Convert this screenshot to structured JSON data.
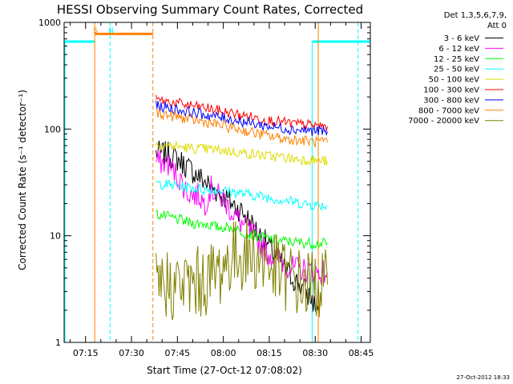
{
  "chart_data": {
    "type": "line",
    "title": "HESSI Observing Summary Count Rates, Corrected",
    "xlabel": "Start Time (27-Oct-12 07:08:02)",
    "ylabel": "Corrected Count Rate (s⁻¹ detector⁻¹)",
    "yscale": "log",
    "ylim": [
      1,
      1000
    ],
    "xlim": [
      "07:08",
      "08:48"
    ],
    "y_ticks": [
      "1",
      "10",
      "100",
      "1000"
    ],
    "x_ticks": [
      "07:15",
      "07:30",
      "07:45",
      "08:00",
      "08:15",
      "08:30",
      "08:45"
    ],
    "legend_title": [
      "Det 1,3,5,6,7,9,",
      "Att 0"
    ],
    "legend_position": "right",
    "footer": "27-Oct-2012 18:33",
    "series": [
      {
        "name": "3 - 6 keV",
        "color": "#000000",
        "x": [
          "07:38",
          "07:42",
          "07:46",
          "07:50",
          "07:54",
          "07:58",
          "08:02",
          "08:06",
          "08:10",
          "08:14",
          "08:18",
          "08:22",
          "08:26",
          "08:29",
          "08:31"
        ],
        "y": [
          60,
          58,
          50,
          40,
          32,
          26,
          21,
          17,
          12,
          8.5,
          6,
          4.2,
          3.2,
          2.5,
          2
        ]
      },
      {
        "name": "6 - 12 keV",
        "color": "#ff00ff",
        "x": [
          "07:38",
          "07:42",
          "07:46",
          "07:48",
          "07:50",
          "07:52",
          "07:54",
          "07:56",
          "07:58",
          "08:00",
          "08:02",
          "08:06",
          "08:10",
          "08:14",
          "08:18",
          "08:22",
          "08:26",
          "08:30",
          "08:34"
        ],
        "y": [
          50,
          47,
          33,
          26,
          24,
          24,
          20,
          28,
          24,
          22,
          18,
          13,
          10,
          7,
          6,
          5,
          4.8,
          4.6,
          4.5
        ]
      },
      {
        "name": "12 - 25 keV",
        "color": "#00ff00",
        "x": [
          "07:38",
          "07:42",
          "07:46",
          "07:50",
          "07:54",
          "07:58",
          "08:02",
          "08:06",
          "08:10",
          "08:14",
          "08:18",
          "08:22",
          "08:26",
          "08:30",
          "08:34"
        ],
        "y": [
          16,
          15,
          14,
          13,
          13,
          12,
          12,
          11,
          10,
          9.5,
          9,
          8.8,
          8.6,
          8.5,
          8.5
        ]
      },
      {
        "name": "25 - 50 keV",
        "color": "#00ffff",
        "x": [
          "07:38",
          "07:42",
          "07:46",
          "07:50",
          "07:54",
          "07:58",
          "08:02",
          "08:06",
          "08:10",
          "08:14",
          "08:18",
          "08:22",
          "08:26",
          "08:30",
          "08:34"
        ],
        "y": [
          31,
          30,
          29,
          28,
          27,
          27,
          26,
          25,
          24,
          23,
          22,
          21,
          20,
          19.5,
          19
        ]
      },
      {
        "name": "50 - 100 keV",
        "color": "#dddd00",
        "x": [
          "07:38",
          "07:42",
          "07:46",
          "07:50",
          "07:54",
          "07:58",
          "08:02",
          "08:06",
          "08:10",
          "08:14",
          "08:18",
          "08:22",
          "08:26",
          "08:30",
          "08:34"
        ],
        "y": [
          72,
          70,
          68,
          66,
          65,
          64,
          62,
          60,
          58,
          56,
          55,
          53,
          52,
          51,
          50
        ]
      },
      {
        "name": "100 - 300 keV",
        "color": "#ff0000",
        "x": [
          "07:38",
          "07:42",
          "07:46",
          "07:50",
          "07:54",
          "07:58",
          "08:02",
          "08:06",
          "08:10",
          "08:14",
          "08:18",
          "08:22",
          "08:26",
          "08:30",
          "08:34"
        ],
        "y": [
          188,
          180,
          172,
          165,
          158,
          150,
          142,
          135,
          128,
          122,
          117,
          113,
          110,
          108,
          106
        ]
      },
      {
        "name": "300 - 800 keV",
        "color": "#0000ff",
        "x": [
          "07:38",
          "07:42",
          "07:46",
          "07:50",
          "07:54",
          "07:58",
          "08:02",
          "08:06",
          "08:10",
          "08:14",
          "08:18",
          "08:22",
          "08:26",
          "08:30",
          "08:34"
        ],
        "y": [
          165,
          158,
          150,
          143,
          136,
          130,
          124,
          118,
          112,
          107,
          103,
          100,
          98,
          96,
          95
        ]
      },
      {
        "name": "800 - 7000 keV",
        "color": "#ff8000",
        "x": [
          "07:38",
          "07:42",
          "07:46",
          "07:50",
          "07:54",
          "07:58",
          "08:02",
          "08:06",
          "08:10",
          "08:14",
          "08:18",
          "08:22",
          "08:26",
          "08:30",
          "08:34"
        ],
        "y": [
          142,
          135,
          128,
          122,
          116,
          110,
          104,
          98,
          92,
          87,
          83,
          80,
          78,
          76,
          75
        ]
      },
      {
        "name": "7000 - 20000 keV",
        "color": "#808000",
        "x": [
          "07:38",
          "07:42",
          "07:46",
          "07:50",
          "07:54",
          "07:58",
          "08:02",
          "08:06",
          "08:10",
          "08:14",
          "08:18",
          "08:22",
          "08:26",
          "08:30",
          "08:34"
        ],
        "y": [
          3.5,
          3.5,
          3.4,
          3.5,
          3.8,
          4.5,
          6,
          6.8,
          6.5,
          5.5,
          4.5,
          4,
          3.5,
          3.5,
          3.5
        ]
      }
    ],
    "annotations": [
      {
        "label": "S",
        "color": "#ff8000",
        "x": "07:18"
      },
      {
        "label": "N",
        "color": "#00ffff",
        "x": "07:23"
      }
    ]
  }
}
